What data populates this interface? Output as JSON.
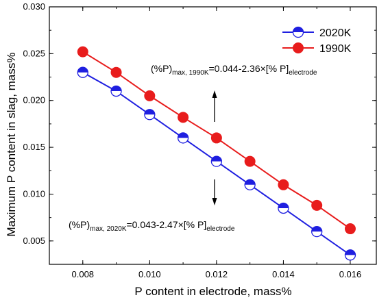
{
  "chart_data": {
    "type": "line",
    "xlabel": "P content in electrode, mass%",
    "ylabel": "Maximum P content in slag, mass%",
    "xlim": [
      0.007,
      0.0168
    ],
    "ylim": [
      0.0025,
      0.03
    ],
    "xticks": [
      "0.008",
      "0.010",
      "0.012",
      "0.014",
      "0.016"
    ],
    "yticks": [
      "0.005",
      "0.010",
      "0.015",
      "0.020",
      "0.025",
      "0.030"
    ],
    "grid": false,
    "legend_position": "top-right",
    "series": [
      {
        "name": "2020K",
        "color": "#1f1fe0",
        "marker": "half-filled-circle",
        "x": [
          0.008,
          0.009,
          0.01,
          0.011,
          0.012,
          0.013,
          0.014,
          0.015,
          0.016
        ],
        "y": [
          0.023,
          0.021,
          0.0185,
          0.016,
          0.0135,
          0.011,
          0.0085,
          0.006,
          0.0035
        ]
      },
      {
        "name": "1990K",
        "color": "#e81c1c",
        "marker": "filled-circle",
        "x": [
          0.008,
          0.009,
          0.01,
          0.011,
          0.012,
          0.013,
          0.014,
          0.015,
          0.016
        ],
        "y": [
          0.0252,
          0.023,
          0.0205,
          0.0182,
          0.016,
          0.0135,
          0.011,
          0.0088,
          0.0063
        ]
      }
    ],
    "annotations": [
      {
        "id": "eq-1990",
        "prefix": "(%P)",
        "prefix_sub": "max, 1990K",
        "body": "=0.044-2.36×[% P]",
        "suffix_sub": "electrode",
        "arrow": "up"
      },
      {
        "id": "eq-2020",
        "prefix": "(%P)",
        "prefix_sub": "max, 2020K",
        "body": "=0.043-2.47×[% P]",
        "suffix_sub": "electrode",
        "arrow": "down"
      }
    ]
  }
}
